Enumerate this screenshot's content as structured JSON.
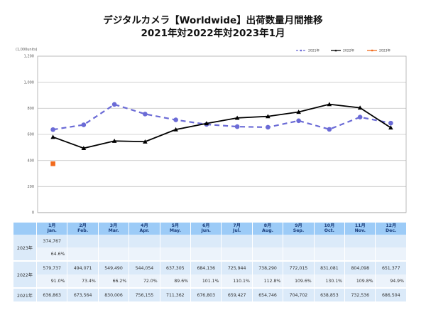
{
  "header": {
    "title_line1": "デジタルカメラ【Worldwide】出荷数量月間推移",
    "title_line2": "2021年対2022年対2023年1月"
  },
  "chart_data": {
    "type": "line",
    "title": "デジタルカメラ【Worldwide】出荷数量月間推移 2021年対2022年対2023年1月",
    "unit_label": "(1,000units)",
    "xlabel": "",
    "ylabel": "(1,000units)",
    "ylim": [
      0,
      1200
    ],
    "yticks": [
      0,
      200,
      400,
      600,
      800,
      1000,
      1200
    ],
    "ytick_labels": [
      "0",
      "200",
      "400",
      "600",
      "800",
      "1,000",
      "1,200"
    ],
    "grid": true,
    "legend_position": "top-right",
    "categories": [
      "1月",
      "2月",
      "3月",
      "4月",
      "5月",
      "6月",
      "7月",
      "8月",
      "9月",
      "10月",
      "11月",
      "12月"
    ],
    "series": [
      {
        "name": "2021年",
        "color": "#6b6bd6",
        "style": "dashed",
        "marker": "circle",
        "values": [
          636.863,
          673.564,
          830.006,
          756.155,
          711.362,
          676.803,
          659.427,
          654.746,
          704.702,
          638.853,
          732.536,
          686.504
        ]
      },
      {
        "name": "2022年",
        "color": "#000000",
        "style": "solid",
        "marker": "triangle",
        "values": [
          579.737,
          494.071,
          549.49,
          544.054,
          637.305,
          684.136,
          725.944,
          738.29,
          772.015,
          831.081,
          804.098,
          651.377
        ]
      },
      {
        "name": "2023年",
        "color": "#f26b1d",
        "style": "solid",
        "marker": "square",
        "values": [
          374.767
        ]
      }
    ]
  },
  "table": {
    "months": [
      {
        "jp": "1月",
        "en": "Jan."
      },
      {
        "jp": "2月",
        "en": "Feb."
      },
      {
        "jp": "3月",
        "en": "Mar."
      },
      {
        "jp": "4月",
        "en": "Apr."
      },
      {
        "jp": "5月",
        "en": "May."
      },
      {
        "jp": "6月",
        "en": "Jun."
      },
      {
        "jp": "7月",
        "en": "Jul."
      },
      {
        "jp": "8月",
        "en": "Aug."
      },
      {
        "jp": "9月",
        "en": "Sep."
      },
      {
        "jp": "10月",
        "en": "Oct."
      },
      {
        "jp": "11月",
        "en": "Nov."
      },
      {
        "jp": "12月",
        "en": "Dec."
      }
    ],
    "rows": [
      {
        "year": "2023年",
        "units": [
          "374,767",
          "",
          "",
          "",
          "",
          "",
          "",
          "",
          "",
          "",
          "",
          ""
        ],
        "ratio": [
          "64.6%",
          "",
          "",
          "",
          "",
          "",
          "",
          "",
          "",
          "",
          "",
          ""
        ]
      },
      {
        "year": "2022年",
        "units": [
          "579,737",
          "494,071",
          "549,490",
          "544,054",
          "637,305",
          "684,136",
          "725,944",
          "738,290",
          "772,015",
          "831,081",
          "804,098",
          "651,377"
        ],
        "ratio": [
          "91.0%",
          "73.4%",
          "66.2%",
          "72.0%",
          "89.6%",
          "101.1%",
          "110.1%",
          "112.8%",
          "109.6%",
          "130.1%",
          "109.8%",
          "94.9%"
        ]
      },
      {
        "year": "2021年",
        "units": [
          "636,863",
          "673,564",
          "830,006",
          "756,155",
          "711,362",
          "676,803",
          "659,427",
          "654,746",
          "704,702",
          "638,853",
          "732,536",
          "686,504"
        ]
      }
    ]
  }
}
